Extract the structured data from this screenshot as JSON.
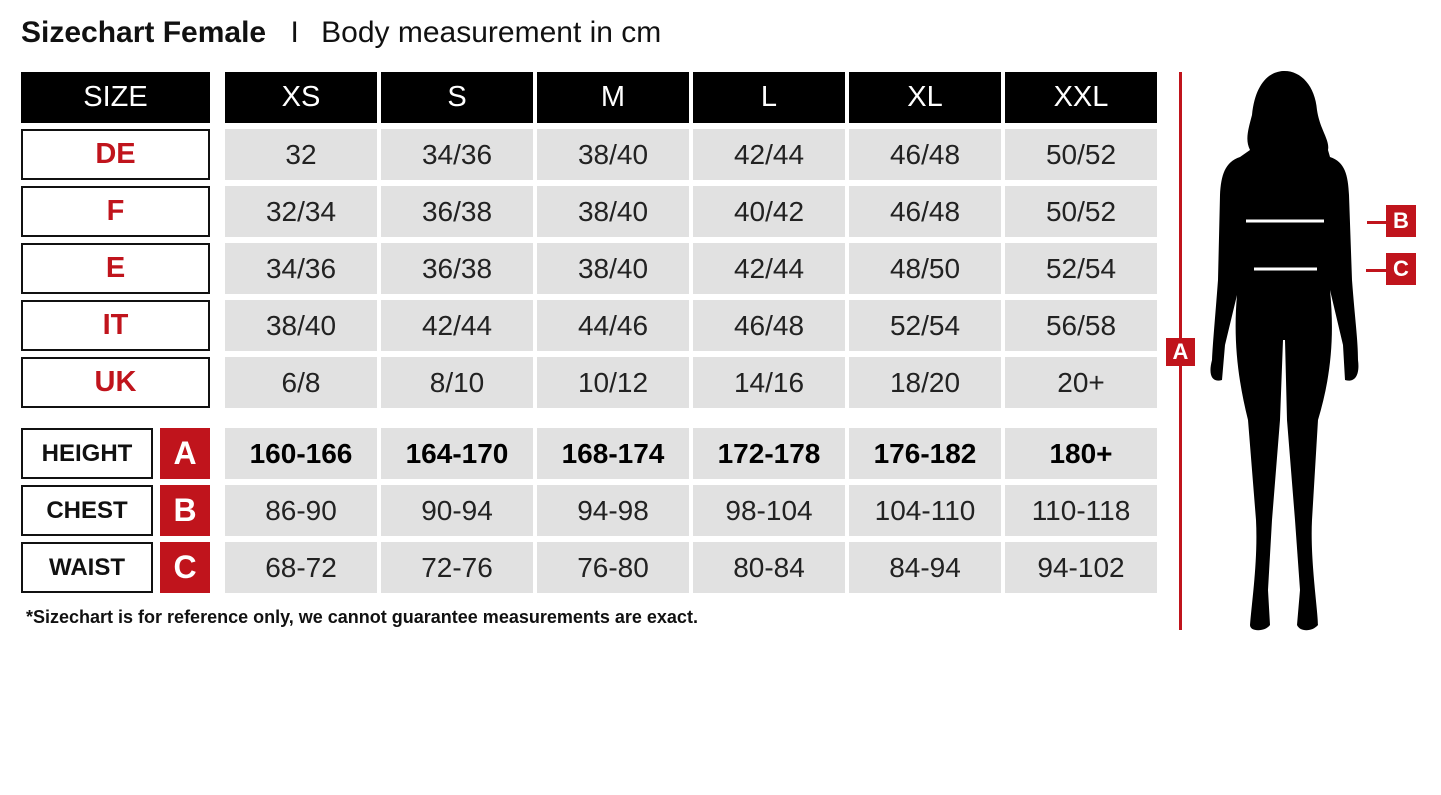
{
  "title": {
    "bold": "Sizechart Female",
    "separator": "I",
    "subtitle": "Body measurement in cm"
  },
  "header": {
    "size_label": "SIZE",
    "sizes": [
      "XS",
      "S",
      "M",
      "L",
      "XL",
      "XXL"
    ]
  },
  "conversion_rows": [
    {
      "label": "DE",
      "values": [
        "32",
        "34/36",
        "38/40",
        "42/44",
        "46/48",
        "50/52"
      ]
    },
    {
      "label": "F",
      "values": [
        "32/34",
        "36/38",
        "38/40",
        "40/42",
        "46/48",
        "50/52"
      ]
    },
    {
      "label": "E",
      "values": [
        "34/36",
        "36/38",
        "38/40",
        "42/44",
        "48/50",
        "52/54"
      ]
    },
    {
      "label": "IT",
      "values": [
        "38/40",
        "42/44",
        "44/46",
        "46/48",
        "52/54",
        "56/58"
      ]
    },
    {
      "label": "UK",
      "values": [
        "6/8",
        "8/10",
        "10/12",
        "14/16",
        "18/20",
        "20+"
      ]
    }
  ],
  "measurement_rows": [
    {
      "label": "HEIGHT",
      "letter": "A",
      "values": [
        "160-166",
        "164-170",
        "168-174",
        "172-178",
        "176-182",
        "180+"
      ]
    },
    {
      "label": "CHEST",
      "letter": "B",
      "values": [
        "86-90",
        "90-94",
        "94-98",
        "98-104",
        "104-110",
        "110-118"
      ]
    },
    {
      "label": "WAIST",
      "letter": "C",
      "values": [
        "68-72",
        "72-76",
        "76-80",
        "80-84",
        "84-94",
        "94-102"
      ]
    }
  ],
  "footnote": "*Sizechart is for reference only, we cannot guarantee measurements are exact.",
  "figure": {
    "height_tag": "A",
    "chest_tag": "B",
    "waist_tag": "C"
  },
  "colors": {
    "accent": "#c0141c",
    "header_bg": "#000000",
    "cell_bg": "#e1e1e1"
  }
}
